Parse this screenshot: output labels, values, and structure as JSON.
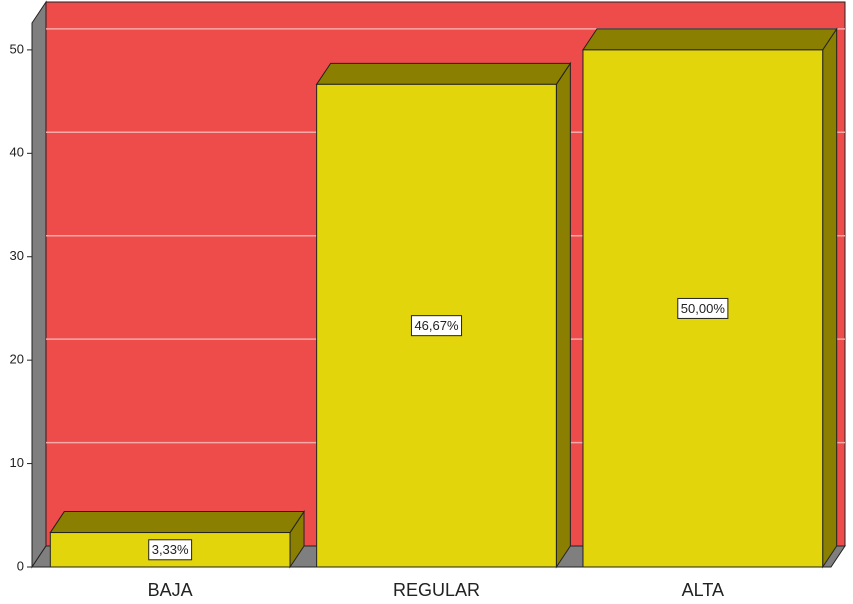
{
  "chart_data": {
    "type": "bar3d",
    "categories": [
      "BAJA",
      "REGULAR",
      "ALTA"
    ],
    "values": [
      3.33,
      46.67,
      50.0
    ],
    "value_labels": [
      "3,33%",
      "46,67%",
      "50,00%"
    ],
    "color": "#e3d50c",
    "background": "#ee4b4b",
    "ylim": [
      0,
      52.6
    ],
    "yticks": [
      0,
      10,
      20,
      30,
      40,
      50
    ],
    "grid": true
  }
}
